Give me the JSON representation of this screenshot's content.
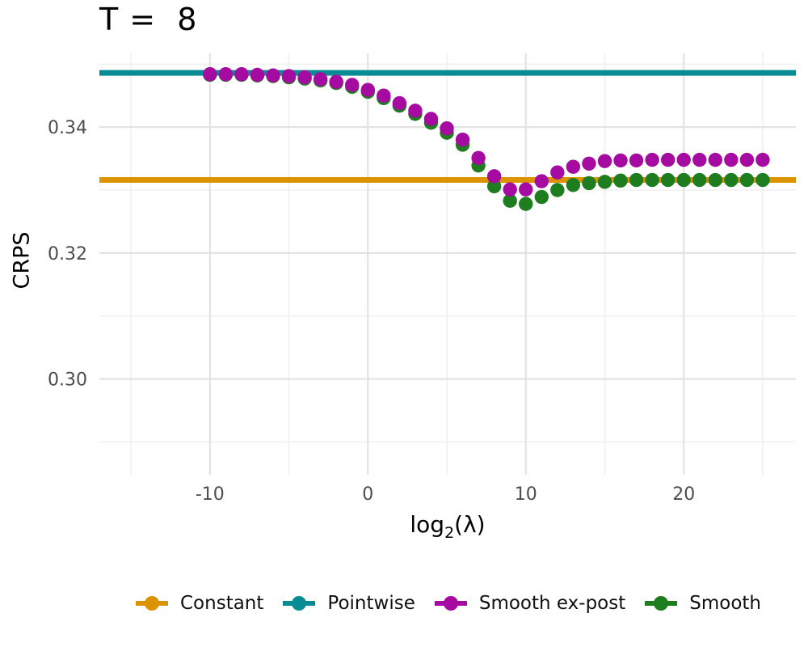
{
  "figure_title": "T =  8",
  "x_axis_title": {
    "base": "log",
    "sub": "2",
    "rest": "(λ)"
  },
  "y_axis_title": "CRPS",
  "chart_data": {
    "type": "scatter",
    "title": "T =  8",
    "xlabel": "log2(lambda)",
    "ylabel": "CRPS",
    "xlim": [
      -17.0,
      27.1
    ],
    "ylim": [
      0.2848,
      0.3517
    ],
    "x_major_ticks": [
      -10,
      0,
      10,
      20
    ],
    "x_minor_ticks": [
      -15,
      -5,
      5,
      15,
      25
    ],
    "y_major_ticks": [
      0.3,
      0.32,
      0.34
    ],
    "y_minor_ticks": [
      0.29,
      0.31,
      0.33,
      0.35
    ],
    "grid": true,
    "legend_position": "bottom",
    "style": {
      "background": "#FFFFFF",
      "grid_major": "#E3E3E3",
      "grid_minor": "#F0F0F0",
      "tick_label_color": "#4D4D4D",
      "text_color": "#000000",
      "hline_width": 7,
      "point_radius": 8.7
    },
    "hlines": [
      {
        "name": "Constant",
        "value": 0.3316,
        "color": "#DC9300"
      },
      {
        "name": "Pointwise",
        "value": 0.3486,
        "color": "#088C93"
      }
    ],
    "x": [
      -10,
      -9,
      -8,
      -7,
      -6,
      -5,
      -4,
      -3,
      -2,
      -1,
      0,
      1,
      2,
      3,
      4,
      5,
      6,
      7,
      8,
      9,
      10,
      11,
      12,
      13,
      14,
      15,
      16,
      17,
      18,
      19,
      20,
      21,
      22,
      23,
      24,
      25
    ],
    "series": [
      {
        "name": "Smooth ex-post",
        "color": "#A50BA0",
        "values": [
          0.3484,
          0.3484,
          0.3484,
          0.3483,
          0.3482,
          0.3481,
          0.3479,
          0.3476,
          0.3472,
          0.3467,
          0.3459,
          0.345,
          0.3438,
          0.3426,
          0.3413,
          0.3398,
          0.338,
          0.3351,
          0.3322,
          0.3301,
          0.3301,
          0.3314,
          0.3328,
          0.3337,
          0.3342,
          0.3346,
          0.3347,
          0.3347,
          0.3348,
          0.3348,
          0.3348,
          0.3348,
          0.3348,
          0.3348,
          0.3348,
          0.3348
        ]
      },
      {
        "name": "Smooth",
        "color": "#1E7D1E",
        "values": [
          0.3483,
          0.3483,
          0.3483,
          0.3482,
          0.3481,
          0.3479,
          0.3477,
          0.3474,
          0.347,
          0.3464,
          0.3456,
          0.3446,
          0.3434,
          0.3421,
          0.3407,
          0.3391,
          0.3372,
          0.3339,
          0.3306,
          0.3283,
          0.3278,
          0.3289,
          0.33,
          0.3308,
          0.3311,
          0.3313,
          0.3315,
          0.3316,
          0.3316,
          0.3316,
          0.3316,
          0.3316,
          0.3316,
          0.3316,
          0.3316,
          0.3316
        ]
      }
    ],
    "legend": [
      {
        "label": "Constant",
        "color": "#DC9300"
      },
      {
        "label": "Pointwise",
        "color": "#088C93"
      },
      {
        "label": "Smooth ex-post",
        "color": "#A50BA0"
      },
      {
        "label": "Smooth",
        "color": "#1E7D1E"
      }
    ]
  }
}
